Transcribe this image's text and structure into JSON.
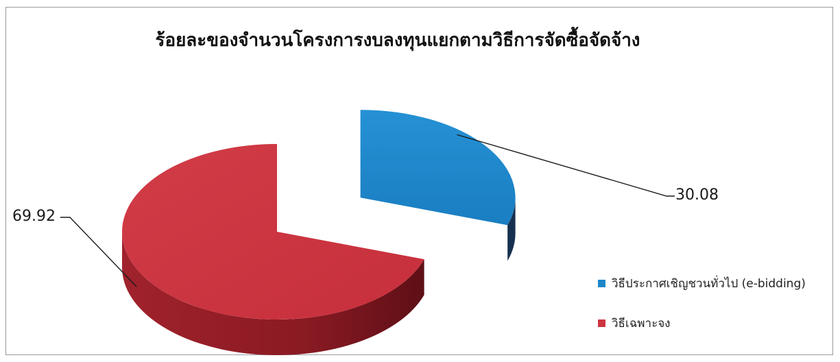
{
  "chart_data": {
    "type": "pie",
    "title": "ร้อยละของจำนวนโครงการงบลงทุนแยกตามวิธีการจัดซื้อจัดจ้าง",
    "categories": [
      "วิธีประกาศเชิญชวนทั่วไป (e-bidding)",
      "วิธีเฉพาะจง"
    ],
    "values": [
      30.08,
      69.92
    ],
    "data_labels": [
      "30.08",
      "69.92"
    ],
    "colors": {
      "e_bidding_top": "#1d86c9",
      "e_bidding_side": "#17304f",
      "specific_top": "#cd3540",
      "specific_side": "#8e1c25"
    },
    "style": "3d-exploded",
    "legend_position": "right-bottom"
  }
}
